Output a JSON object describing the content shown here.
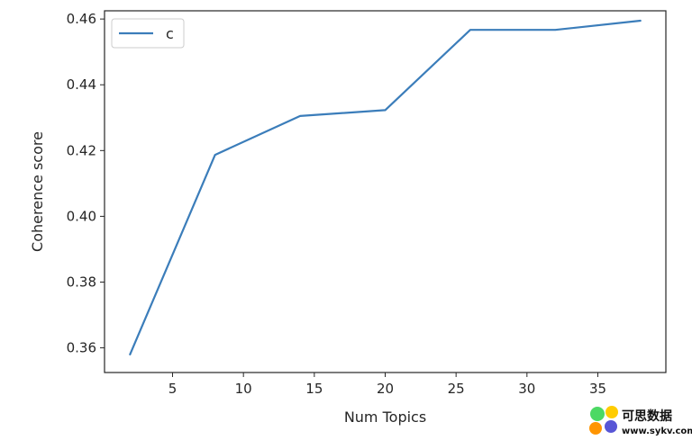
{
  "chart_data": {
    "type": "line",
    "xlabel": "Num Topics",
    "ylabel": "Coherence score",
    "xlim": [
      0.2,
      39.8
    ],
    "ylim": [
      0.3525,
      0.4625
    ],
    "xticks": [
      5,
      10,
      15,
      20,
      25,
      30,
      35
    ],
    "xtick_labels": [
      "5",
      "10",
      "15",
      "20",
      "25",
      "30",
      "35"
    ],
    "yticks": [
      0.36,
      0.38,
      0.4,
      0.42,
      0.44,
      0.46
    ],
    "ytick_labels": [
      "0.36",
      "0.38",
      "0.40",
      "0.42",
      "0.44",
      "0.46"
    ],
    "grid": false,
    "legend_position": "top-left",
    "series": [
      {
        "name": "c",
        "color": "#3b7dba",
        "x": [
          2,
          8,
          14,
          20,
          26,
          32,
          38
        ],
        "y": [
          0.358,
          0.4187,
          0.4305,
          0.4323,
          0.4567,
          0.4567,
          0.4595
        ]
      }
    ]
  },
  "watermark": {
    "title": "可思数据",
    "url": "www.sykv.com"
  }
}
